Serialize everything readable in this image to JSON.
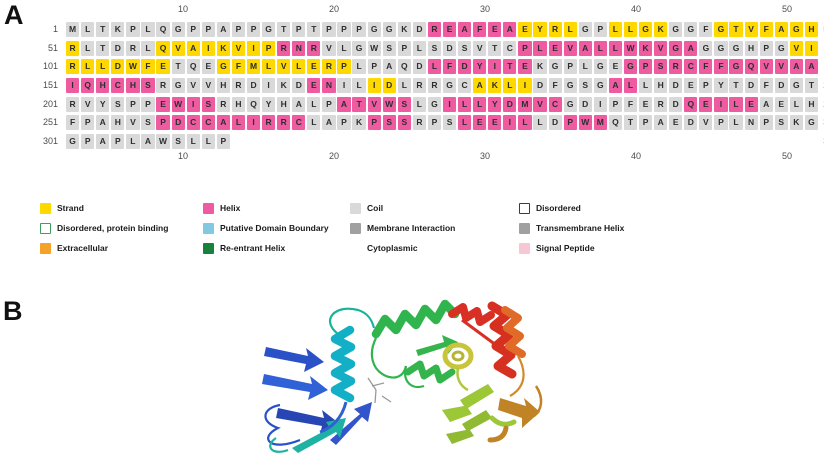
{
  "panel_a_label": "A",
  "panel_b_label": "B",
  "colors": {
    "strand": "#FFD800",
    "helix": "#EF5BA1",
    "coil": "#D9D9D9",
    "cell_text": "#2e2e2e",
    "number_text": "#4c4c4c"
  },
  "ruler": {
    "ticks": [
      "10",
      "20",
      "30",
      "40",
      "50"
    ]
  },
  "sequence_rows": [
    {
      "start": "1",
      "end": "50",
      "segments": [
        {
          "t": "MLTKPLQGPPAPPGTPTPPPGGKD",
          "c": "coil"
        },
        {
          "t": "REAFEA",
          "c": "helix"
        },
        {
          "t": "EYRL",
          "c": "strand"
        },
        {
          "t": "GP",
          "c": "coil"
        },
        {
          "t": "LLGK",
          "c": "strand"
        },
        {
          "t": "GGF",
          "c": "coil"
        },
        {
          "t": "GTVFAGH",
          "c": "strand"
        }
      ]
    },
    {
      "start": "51",
      "end": "100",
      "segments": [
        {
          "t": "R",
          "c": "strand"
        },
        {
          "t": "LTDRL",
          "c": "coil"
        },
        {
          "t": "QVAIKVIP",
          "c": "strand"
        },
        {
          "t": "RNR",
          "c": "helix"
        },
        {
          "t": "VLGWSPLSDSVTC",
          "c": "coil"
        },
        {
          "t": "PLEVALLWKVGA",
          "c": "helix"
        },
        {
          "t": "GGGHPG",
          "c": "coil"
        },
        {
          "t": "VI",
          "c": "strand"
        }
      ]
    },
    {
      "start": "101",
      "end": "150",
      "segments": [
        {
          "t": "RLLDWFE",
          "c": "strand"
        },
        {
          "t": "TQE",
          "c": "coil"
        },
        {
          "t": "GFMLVLERP",
          "c": "strand"
        },
        {
          "t": "LPAQD",
          "c": "coil"
        },
        {
          "t": "LFDYITE",
          "c": "helix"
        },
        {
          "t": "KGPLGE",
          "c": "coil"
        },
        {
          "t": "GPSRCFFGQVVAA",
          "c": "helix"
        }
      ]
    },
    {
      "start": "151",
      "end": "200",
      "segments": [
        {
          "t": "IQHCHS",
          "c": "helix"
        },
        {
          "t": "RGVVHRDIKD",
          "c": "coil"
        },
        {
          "t": "EN",
          "c": "helix"
        },
        {
          "t": "IL",
          "c": "coil"
        },
        {
          "t": "ID",
          "c": "strand"
        },
        {
          "t": "LRRGC",
          "c": "coil"
        },
        {
          "t": "AKLI",
          "c": "strand"
        },
        {
          "t": "DFGSG",
          "c": "coil"
        },
        {
          "t": "AL",
          "c": "helix"
        },
        {
          "t": "LHDEPYTDFDGT",
          "c": "coil"
        }
      ]
    },
    {
      "start": "201",
      "end": "250",
      "segments": [
        {
          "t": "RVYSPP",
          "c": "coil"
        },
        {
          "t": "EWIS",
          "c": "helix"
        },
        {
          "t": "RHQYHALP",
          "c": "coil"
        },
        {
          "t": "ATVWS",
          "c": "helix"
        },
        {
          "t": "LG",
          "c": "coil"
        },
        {
          "t": "ILLYDMVC",
          "c": "helix"
        },
        {
          "t": "GDIPFERD",
          "c": "coil"
        },
        {
          "t": "QEILE",
          "c": "helix"
        },
        {
          "t": "AELH",
          "c": "coil"
        }
      ]
    },
    {
      "start": "251",
      "end": "300",
      "segments": [
        {
          "t": "FPAHVS",
          "c": "coil"
        },
        {
          "t": "PDCCALIRRC",
          "c": "helix"
        },
        {
          "t": "LAPK",
          "c": "coil"
        },
        {
          "t": "PSS",
          "c": "helix"
        },
        {
          "t": "RPS",
          "c": "coil"
        },
        {
          "t": "LEEIL",
          "c": "helix"
        },
        {
          "t": "LD",
          "c": "coil"
        },
        {
          "t": "PWM",
          "c": "helix"
        },
        {
          "t": "QTPAEDVPLNPSKG",
          "c": "coil"
        }
      ]
    },
    {
      "start": "301",
      "end": "311",
      "segments": [
        {
          "t": "GPAPLAWSLLP",
          "c": "coil"
        }
      ]
    }
  ],
  "legend": {
    "columns": [
      [
        {
          "label": "Strand",
          "swatch": "fill",
          "color": "#FFD800"
        },
        {
          "label": "Disordered, protein binding",
          "swatch": "outline",
          "color": "#3F9E5A"
        },
        {
          "label": "Extracellular",
          "swatch": "fill",
          "color": "#F5A229"
        }
      ],
      [
        {
          "label": "Helix",
          "swatch": "fill",
          "color": "#EF5BA1"
        },
        {
          "label": "Putative Domain Boundary",
          "swatch": "fill",
          "color": "#82C8E0"
        },
        {
          "label": "Re-entrant Helix",
          "swatch": "fill",
          "color": "#17813D"
        }
      ],
      [
        {
          "label": "Coil",
          "swatch": "fill",
          "color": "#D9D9D9"
        },
        {
          "label": "Membrane Interaction",
          "swatch": "fill",
          "color": "#A0A0A0"
        },
        {
          "label": "Cytoplasmic",
          "swatch": "none",
          "color": ""
        }
      ],
      [
        {
          "label": "Disordered",
          "swatch": "outline",
          "color": "#2D3A6B"
        },
        {
          "label": "Transmembrane Helix",
          "swatch": "fill",
          "color": "#A0A0A0"
        },
        {
          "label": "Signal Peptide",
          "swatch": "fill",
          "color": "#F8C7D6"
        }
      ]
    ]
  }
}
